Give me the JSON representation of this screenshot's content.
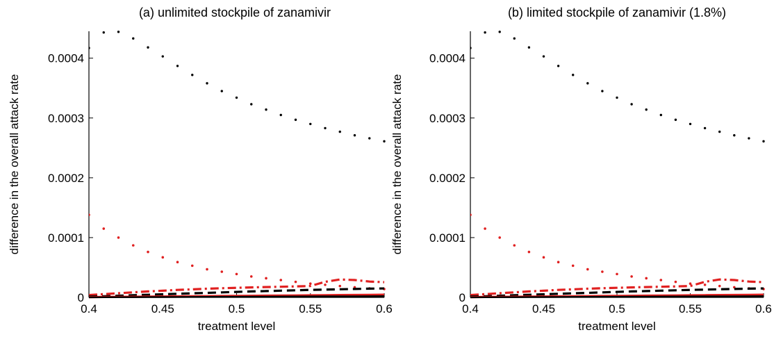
{
  "chart_data": [
    {
      "type": "line",
      "title": "(a) unlimited stockpile of zanamivir",
      "xlabel": "treatment level",
      "ylabel": "difference in the overall attack rate",
      "xlim": [
        0.4,
        0.6
      ],
      "ylim": [
        0,
        0.000445
      ],
      "xticks": [
        0.4,
        0.45,
        0.5,
        0.55,
        0.6
      ],
      "xtick_labels": [
        "0.4",
        "0.45",
        "0.5",
        "0.55",
        "0.6"
      ],
      "yticks": [
        0,
        0.0001,
        0.0002,
        0.0003,
        0.0004
      ],
      "ytick_labels": [
        "0",
        "0.0001",
        "0.0002",
        "0.0003",
        "0.0004"
      ],
      "grid": false,
      "x": [
        0.4,
        0.41,
        0.42,
        0.43,
        0.44,
        0.45,
        0.46,
        0.47,
        0.48,
        0.49,
        0.5,
        0.51,
        0.52,
        0.53,
        0.54,
        0.55,
        0.56,
        0.57,
        0.58,
        0.59,
        0.6
      ],
      "series": [
        {
          "style": "dotted",
          "color": "#000000",
          "values": [
            0.000417,
            0.000443,
            0.000444,
            0.000433,
            0.000418,
            0.000403,
            0.000387,
            0.000372,
            0.000358,
            0.000345,
            0.000334,
            0.000323,
            0.000314,
            0.000305,
            0.000297,
            0.00029,
            0.000283,
            0.000277,
            0.000271,
            0.000266,
            0.000261
          ]
        },
        {
          "style": "dotted",
          "color": "#e02020",
          "values": [
            0.000138,
            0.000115,
            0.0001,
            8.7e-05,
            7.6e-05,
            6.7e-05,
            5.9e-05,
            5.3e-05,
            4.7e-05,
            4.3e-05,
            3.9e-05,
            3.5e-05,
            3.2e-05,
            2.9e-05,
            2.6e-05,
            2.3e-05,
            2.1e-05,
            1.9e-05,
            1.7e-05,
            1.5e-05,
            1.4e-05
          ]
        },
        {
          "style": "dashdot",
          "color": "#e02020",
          "values": [
            4e-06,
            5.5e-06,
            7e-06,
            8.5e-06,
            1e-05,
            1.12e-05,
            1.25e-05,
            1.35e-05,
            1.45e-05,
            1.53e-05,
            1.6e-05,
            1.67e-05,
            1.73e-05,
            1.78e-05,
            1.83e-05,
            1.9e-05,
            2.6e-05,
            3e-05,
            2.9e-05,
            2.65e-05,
            2.55e-05
          ]
        },
        {
          "style": "dashed",
          "color": "#000000",
          "values": [
            1.5e-06,
            2e-06,
            2.8e-06,
            3.6e-06,
            4.4e-06,
            5.2e-06,
            6e-06,
            6.8e-06,
            7.6e-06,
            8.4e-06,
            9.2e-06,
            1e-05,
            1.06e-05,
            1.13e-05,
            1.19e-05,
            1.25e-05,
            1.3e-05,
            1.36e-05,
            1.41e-05,
            1.46e-05,
            1.5e-05
          ]
        },
        {
          "style": "solid",
          "color": "#e02020",
          "values": [
            5e-07,
            7e-07,
            9e-07,
            1.1e-06,
            1.3e-06,
            1.5e-06,
            1.7e-06,
            1.9e-06,
            2.1e-06,
            2.3e-06,
            2.5e-06,
            2.7e-06,
            2.9e-06,
            3.1e-06,
            3.3e-06,
            3.5e-06,
            3.7e-06,
            3.9e-06,
            4.1e-06,
            4.3e-06,
            4.5e-06
          ]
        },
        {
          "style": "solid",
          "color": "#000000",
          "values": [
            1e-07,
            2e-07,
            3e-07,
            4e-07,
            5e-07,
            6e-07,
            7e-07,
            8e-07,
            9e-07,
            1e-06,
            1.1e-06,
            1.2e-06,
            1.3e-06,
            1.4e-06,
            1.5e-06,
            1.6e-06,
            1.7e-06,
            1.8e-06,
            1.9e-06,
            2e-06,
            2.1e-06
          ]
        }
      ]
    },
    {
      "type": "line",
      "title": "(b) limited stockpile of zanamivir (1.8%)",
      "xlabel": "treatment level",
      "ylabel": "difference in the overall attack rate",
      "xlim": [
        0.4,
        0.6
      ],
      "ylim": [
        0,
        0.000445
      ],
      "xticks": [
        0.4,
        0.45,
        0.5,
        0.55,
        0.6
      ],
      "xtick_labels": [
        "0.4",
        "0.45",
        "0.5",
        "0.55",
        "0.6"
      ],
      "yticks": [
        0,
        0.0001,
        0.0002,
        0.0003,
        0.0004
      ],
      "ytick_labels": [
        "0",
        "0.0001",
        "0.0002",
        "0.0003",
        "0.0004"
      ],
      "grid": false,
      "x": [
        0.4,
        0.41,
        0.42,
        0.43,
        0.44,
        0.45,
        0.46,
        0.47,
        0.48,
        0.49,
        0.5,
        0.51,
        0.52,
        0.53,
        0.54,
        0.55,
        0.56,
        0.57,
        0.58,
        0.59,
        0.6
      ],
      "series": [
        {
          "style": "dotted",
          "color": "#000000",
          "values": [
            0.000417,
            0.000443,
            0.000444,
            0.000433,
            0.000418,
            0.000403,
            0.000387,
            0.000372,
            0.000358,
            0.000345,
            0.000334,
            0.000323,
            0.000314,
            0.000305,
            0.000297,
            0.00029,
            0.000283,
            0.000277,
            0.000271,
            0.000266,
            0.000261
          ]
        },
        {
          "style": "dotted",
          "color": "#e02020",
          "values": [
            0.000138,
            0.000115,
            0.0001,
            8.7e-05,
            7.6e-05,
            6.7e-05,
            5.9e-05,
            5.3e-05,
            4.7e-05,
            4.3e-05,
            3.9e-05,
            3.5e-05,
            3.2e-05,
            2.9e-05,
            2.6e-05,
            2.3e-05,
            2.1e-05,
            1.9e-05,
            1.7e-05,
            1.5e-05,
            1.4e-05
          ]
        },
        {
          "style": "dashdot",
          "color": "#e02020",
          "values": [
            4e-06,
            5.5e-06,
            7e-06,
            8.5e-06,
            1e-05,
            1.12e-05,
            1.25e-05,
            1.35e-05,
            1.45e-05,
            1.53e-05,
            1.6e-05,
            1.67e-05,
            1.73e-05,
            1.78e-05,
            1.83e-05,
            1.9e-05,
            2.6e-05,
            3e-05,
            2.9e-05,
            2.65e-05,
            2.55e-05
          ]
        },
        {
          "style": "dashed",
          "color": "#000000",
          "values": [
            1.5e-06,
            2e-06,
            2.8e-06,
            3.6e-06,
            4.4e-06,
            5.2e-06,
            6e-06,
            6.8e-06,
            7.6e-06,
            8.4e-06,
            9.2e-06,
            1e-05,
            1.06e-05,
            1.13e-05,
            1.19e-05,
            1.25e-05,
            1.3e-05,
            1.36e-05,
            1.41e-05,
            1.46e-05,
            1.5e-05
          ]
        },
        {
          "style": "solid",
          "color": "#e02020",
          "values": [
            5e-07,
            7e-07,
            9e-07,
            1.1e-06,
            1.3e-06,
            1.5e-06,
            1.7e-06,
            1.9e-06,
            2.1e-06,
            2.3e-06,
            2.5e-06,
            2.7e-06,
            2.9e-06,
            3.1e-06,
            3.3e-06,
            3.5e-06,
            3.7e-06,
            3.9e-06,
            4.1e-06,
            4.3e-06,
            4.5e-06
          ]
        },
        {
          "style": "solid",
          "color": "#000000",
          "values": [
            1e-07,
            2e-07,
            3e-07,
            4e-07,
            5e-07,
            6e-07,
            7e-07,
            8e-07,
            9e-07,
            1e-06,
            1.1e-06,
            1.2e-06,
            1.3e-06,
            1.4e-06,
            1.5e-06,
            1.6e-06,
            1.7e-06,
            1.8e-06,
            1.9e-06,
            2e-06,
            2.1e-06
          ]
        }
      ]
    }
  ]
}
